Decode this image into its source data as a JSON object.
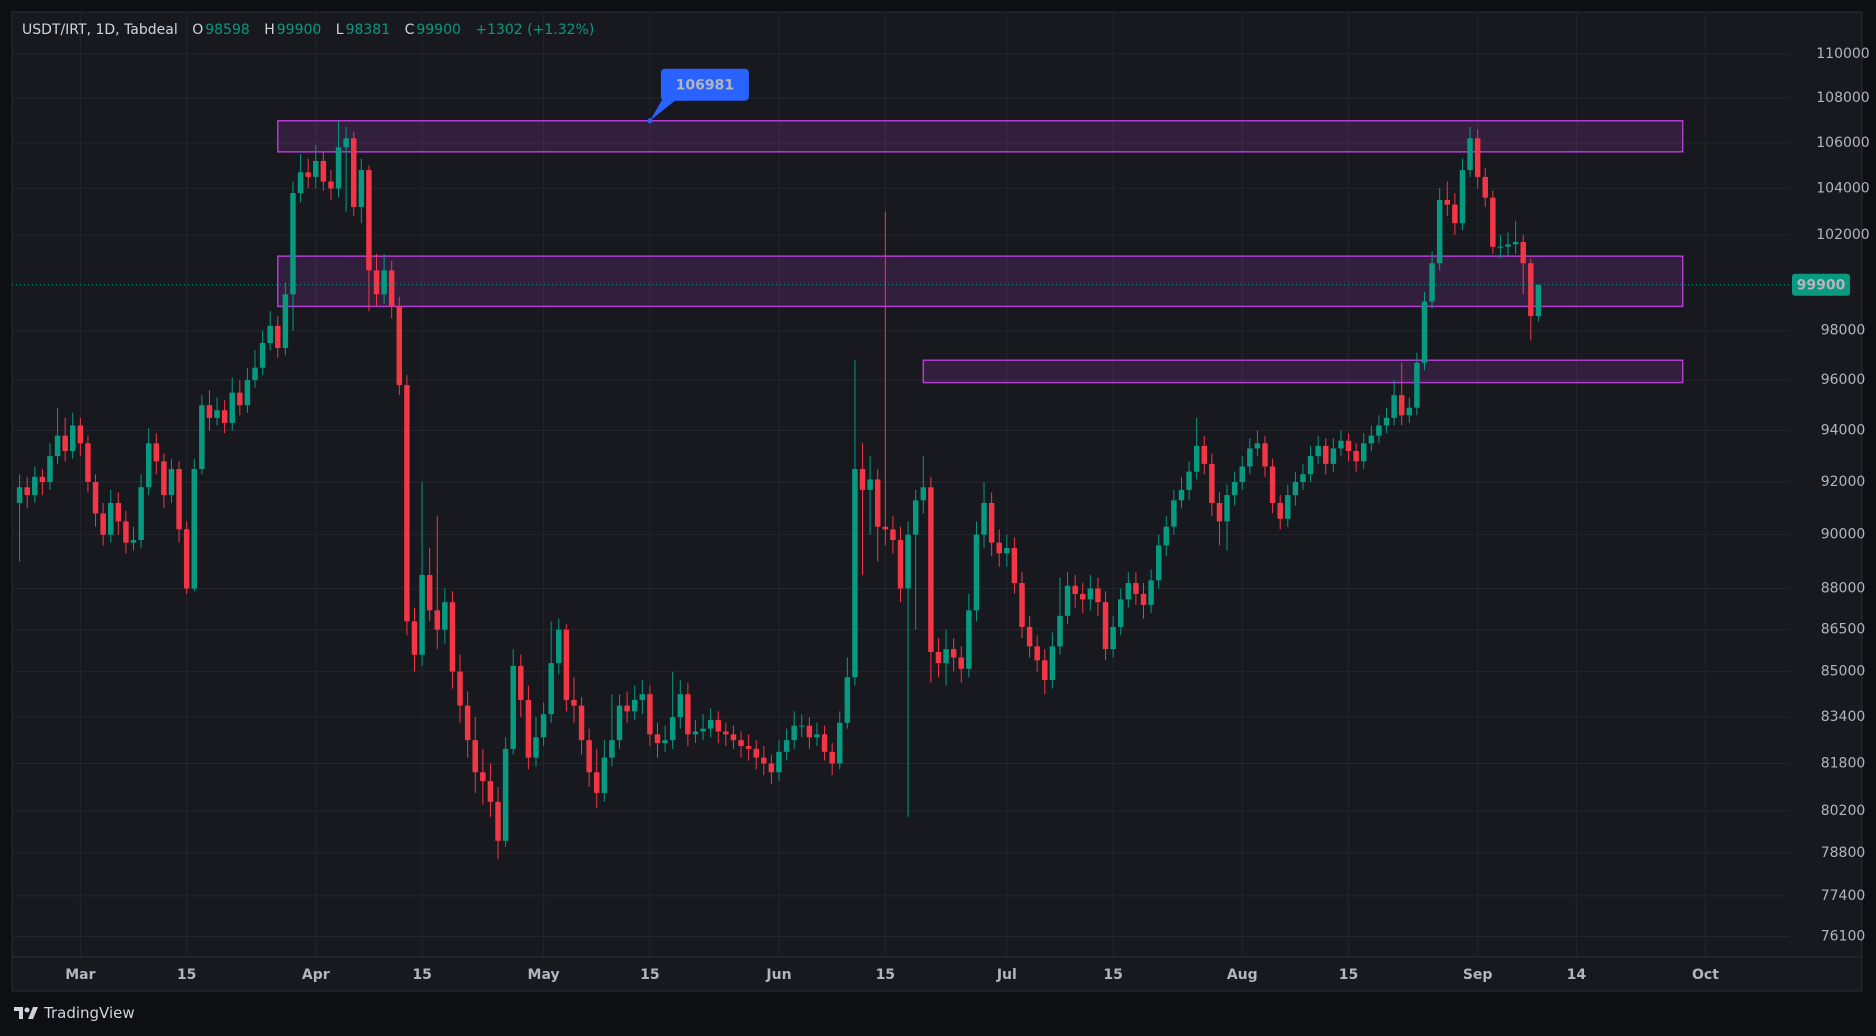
{
  "chart_data": {
    "type": "candlestick",
    "title": "USDT/IRT, 1D, Tabdeal",
    "ohlc_labels": [
      "O",
      "H",
      "L",
      "C"
    ],
    "change": "+1302 (+1.32%)",
    "watermark": "TradingView",
    "up_color": "#089981",
    "down_color": "#f23645",
    "zone_color": "#b33bd1",
    "callout_color": "#2962ff",
    "log_scale": true,
    "grid": true,
    "xlim": [
      "02-21",
      "10-12"
    ],
    "ylim": [
      75450,
      111950
    ],
    "yticks": [
      110000,
      108000,
      106000,
      104000,
      102000,
      98000,
      96000,
      94000,
      92000,
      90000,
      88000,
      86500,
      85000,
      83400,
      81800,
      80200,
      78800,
      77400,
      76100
    ],
    "xticks": [
      {
        "value": "03-01",
        "label": "Mar"
      },
      {
        "value": "03-15",
        "label": "15"
      },
      {
        "value": "04-01",
        "label": "Apr"
      },
      {
        "value": "04-15",
        "label": "15"
      },
      {
        "value": "05-01",
        "label": "May"
      },
      {
        "value": "05-15",
        "label": "15"
      },
      {
        "value": "06-01",
        "label": "Jun"
      },
      {
        "value": "06-15",
        "label": "15"
      },
      {
        "value": "07-01",
        "label": "Jul"
      },
      {
        "value": "07-15",
        "label": "15"
      },
      {
        "value": "08-01",
        "label": "Aug"
      },
      {
        "value": "08-15",
        "label": "15"
      },
      {
        "value": "09-01",
        "label": "Sep"
      },
      {
        "value": "09-14",
        "label": "14"
      },
      {
        "value": "10-01",
        "label": "Oct"
      }
    ],
    "x": [
      "02-22",
      "02-23",
      "02-24",
      "02-25",
      "02-26",
      "02-27",
      "02-28",
      "02-29",
      "03-01",
      "03-02",
      "03-03",
      "03-04",
      "03-05",
      "03-06",
      "03-07",
      "03-08",
      "03-09",
      "03-10",
      "03-11",
      "03-12",
      "03-13",
      "03-14",
      "03-15",
      "03-16",
      "03-17",
      "03-18",
      "03-19",
      "03-20",
      "03-21",
      "03-22",
      "03-23",
      "03-24",
      "03-25",
      "03-26",
      "03-27",
      "03-28",
      "03-29",
      "03-30",
      "03-31",
      "04-01",
      "04-02",
      "04-03",
      "04-04",
      "04-05",
      "04-06",
      "04-07",
      "04-08",
      "04-09",
      "04-10",
      "04-11",
      "04-12",
      "04-13",
      "04-14",
      "04-15",
      "04-16",
      "04-17",
      "04-18",
      "04-19",
      "04-20",
      "04-21",
      "04-22",
      "04-23",
      "04-24",
      "04-25",
      "04-26",
      "04-27",
      "04-28",
      "04-29",
      "04-30",
      "05-01",
      "05-02",
      "05-03",
      "05-04",
      "05-05",
      "05-06",
      "05-07",
      "05-08",
      "05-09",
      "05-10",
      "05-11",
      "05-12",
      "05-13",
      "05-14",
      "05-15",
      "05-16",
      "05-17",
      "05-18",
      "05-19",
      "05-20",
      "05-21",
      "05-22",
      "05-23",
      "05-24",
      "05-25",
      "05-26",
      "05-27",
      "05-28",
      "05-29",
      "05-30",
      "05-31",
      "06-01",
      "06-02",
      "06-03",
      "06-04",
      "06-05",
      "06-06",
      "06-07",
      "06-08",
      "06-09",
      "06-10",
      "06-11",
      "06-12",
      "06-13",
      "06-14",
      "06-15",
      "06-16",
      "06-17",
      "06-18",
      "06-19",
      "06-20",
      "06-21",
      "06-22",
      "06-23",
      "06-24",
      "06-25",
      "06-26",
      "06-27",
      "06-28",
      "06-29",
      "06-30",
      "07-01",
      "07-02",
      "07-03",
      "07-04",
      "07-05",
      "07-06",
      "07-07",
      "07-08",
      "07-09",
      "07-10",
      "07-11",
      "07-12",
      "07-13",
      "07-14",
      "07-15",
      "07-16",
      "07-17",
      "07-18",
      "07-19",
      "07-20",
      "07-21",
      "07-22",
      "07-23",
      "07-24",
      "07-25",
      "07-26",
      "07-27",
      "07-28",
      "07-29",
      "07-30",
      "07-31",
      "08-01",
      "08-02",
      "08-03",
      "08-04",
      "08-05",
      "08-06",
      "08-07",
      "08-08",
      "08-09",
      "08-10",
      "08-11",
      "08-12",
      "08-13",
      "08-14",
      "08-15",
      "08-16",
      "08-17",
      "08-18",
      "08-19",
      "08-20",
      "08-21",
      "08-22",
      "08-23",
      "08-24",
      "08-25",
      "08-26",
      "08-27",
      "08-28",
      "08-29",
      "08-30",
      "08-31",
      "09-01",
      "09-02",
      "09-03",
      "09-04",
      "09-05",
      "09-06",
      "09-07",
      "09-08",
      "09-09"
    ],
    "open": [
      91200,
      91800,
      91500,
      92200,
      92000,
      93000,
      93800,
      93200,
      94200,
      93500,
      92000,
      90800,
      90000,
      91200,
      90500,
      89700,
      89800,
      91800,
      93500,
      92800,
      91500,
      92500,
      90200,
      88000,
      92500,
      95000,
      94500,
      94800,
      94300,
      95500,
      95000,
      96000,
      96500,
      97500,
      98200,
      97300,
      99500,
      103800,
      104700,
      104500,
      105200,
      104300,
      104000,
      105800,
      106200,
      103200,
      104800,
      100500,
      99500,
      100500,
      99000,
      95800,
      86800,
      85600,
      88500,
      87200,
      86500,
      87500,
      85000,
      83800,
      82600,
      81500,
      81200,
      80500,
      79200,
      82300,
      85200,
      84000,
      82000,
      82700,
      83500,
      85300,
      86500,
      84000,
      83800,
      82600,
      81500,
      80800,
      82000,
      82600,
      83800,
      83600,
      84000,
      84200,
      82800,
      82500,
      82600,
      83400,
      84200,
      82800,
      82900,
      83000,
      83300,
      82900,
      82800,
      82600,
      82400,
      82300,
      82000,
      81800,
      81500,
      82200,
      82600,
      83100,
      83100,
      82700,
      82800,
      82200,
      81800,
      83200,
      84800,
      92500,
      91700,
      92100,
      90300,
      90200,
      89800,
      88000,
      90000,
      91300,
      91800,
      85700,
      85300,
      85800,
      85500,
      85100,
      87200,
      90000,
      91200,
      89700,
      89300,
      89500,
      88200,
      86600,
      85900,
      85400,
      84700,
      85900,
      87000,
      88100,
      87800,
      87600,
      88000,
      87500,
      85800,
      86600,
      87600,
      88200,
      87800,
      87400,
      88300,
      89600,
      90300,
      91300,
      91700,
      92400,
      93400,
      92700,
      91200,
      90500,
      91500,
      92000,
      92600,
      93300,
      93500,
      92600,
      91200,
      90600,
      91500,
      92000,
      92300,
      93000,
      93400,
      92700,
      93300,
      93600,
      93200,
      92800,
      93500,
      93800,
      94200,
      94500,
      95400,
      94600,
      94900,
      96700,
      99200,
      100800,
      103500,
      103300,
      102500,
      104800,
      106200,
      104500,
      103600,
      101500,
      101500,
      101600,
      101700,
      100800,
      98598
    ],
    "high": [
      92300,
      92200,
      92600,
      92500,
      93500,
      94900,
      94500,
      94700,
      94500,
      93800,
      92300,
      91200,
      91700,
      91600,
      90900,
      90300,
      92300,
      94100,
      93900,
      93100,
      92900,
      92800,
      90500,
      92900,
      95400,
      95600,
      95300,
      95200,
      96100,
      96000,
      96500,
      97200,
      98000,
      98800,
      98600,
      100000,
      104300,
      105500,
      105300,
      105900,
      105600,
      104800,
      106981,
      106700,
      106500,
      105300,
      105000,
      101200,
      101200,
      100900,
      99400,
      96200,
      87300,
      92000,
      89500,
      90700,
      88000,
      87900,
      85600,
      84300,
      83400,
      82300,
      81800,
      81000,
      82700,
      85800,
      85600,
      84500,
      83400,
      83900,
      86800,
      86900,
      86700,
      84800,
      84100,
      83000,
      82300,
      82600,
      84200,
      84200,
      84300,
      84500,
      84700,
      84500,
      83200,
      83100,
      85000,
      84700,
      84600,
      83300,
      83500,
      83700,
      83600,
      83200,
      83100,
      82900,
      82800,
      82600,
      82400,
      82100,
      82600,
      83000,
      83600,
      83500,
      83400,
      83200,
      83100,
      82500,
      83600,
      85500,
      96800,
      93500,
      93000,
      92500,
      103000,
      90700,
      90300,
      90500,
      91700,
      93000,
      92200,
      86200,
      86500,
      86200,
      85900,
      87800,
      90500,
      92000,
      91600,
      90200,
      90000,
      89900,
      88600,
      87000,
      86300,
      85800,
      86400,
      88400,
      88600,
      88500,
      88200,
      88500,
      88400,
      87900,
      87000,
      88000,
      88600,
      88600,
      88200,
      88700,
      90000,
      90700,
      91700,
      92200,
      92800,
      94500,
      93800,
      93100,
      91600,
      91900,
      92400,
      93000,
      93700,
      94000,
      93800,
      92900,
      91500,
      91900,
      92400,
      92700,
      93400,
      93800,
      93700,
      93700,
      94000,
      93900,
      93500,
      93900,
      94200,
      94600,
      94900,
      96000,
      96700,
      95300,
      97100,
      99600,
      101300,
      104000,
      104300,
      103800,
      105300,
      106700,
      106600,
      104900,
      103900,
      102000,
      102100,
      102600,
      102000,
      101000,
      99900
    ],
    "low": [
      89000,
      91000,
      91200,
      91500,
      91700,
      92700,
      92800,
      92900,
      93000,
      91600,
      90300,
      89600,
      89700,
      90000,
      89300,
      89400,
      89500,
      91500,
      92300,
      91000,
      91200,
      89700,
      87800,
      87900,
      92300,
      94000,
      94200,
      93900,
      94000,
      94600,
      94700,
      95700,
      96200,
      97200,
      96900,
      97000,
      98000,
      103400,
      104000,
      104000,
      103900,
      103500,
      103600,
      103000,
      102800,
      102500,
      98800,
      99000,
      99100,
      98500,
      95400,
      86300,
      85000,
      85200,
      86800,
      85800,
      86000,
      84400,
      83200,
      82000,
      80800,
      80400,
      80000,
      78600,
      79000,
      82100,
      83400,
      81600,
      81700,
      82400,
      83200,
      84900,
      83600,
      83200,
      82100,
      81000,
      80300,
      80500,
      81700,
      82300,
      83200,
      83300,
      83500,
      82400,
      82000,
      82200,
      82300,
      83000,
      82400,
      82500,
      82600,
      82700,
      82500,
      82400,
      82300,
      82000,
      81900,
      81600,
      81400,
      81100,
      81200,
      81900,
      82300,
      82700,
      82300,
      82400,
      81900,
      81400,
      81600,
      83000,
      84500,
      88500,
      90000,
      89000,
      89600,
      89300,
      87500,
      80000,
      86500,
      90800,
      84600,
      84800,
      84500,
      85000,
      84600,
      84800,
      86800,
      89500,
      89200,
      88800,
      88800,
      87800,
      86200,
      85500,
      85000,
      84200,
      84400,
      85600,
      86700,
      87300,
      87100,
      87200,
      87000,
      85400,
      85500,
      86300,
      87300,
      87400,
      86900,
      87100,
      88000,
      89200,
      90000,
      91000,
      91300,
      92100,
      92300,
      90700,
      89600,
      89400,
      91100,
      91700,
      92300,
      93000,
      92200,
      90800,
      90200,
      90300,
      91100,
      91700,
      92000,
      92700,
      92300,
      92400,
      93000,
      92800,
      92400,
      92500,
      93200,
      93500,
      93900,
      94200,
      94200,
      94300,
      94600,
      96400,
      98900,
      100500,
      102800,
      102000,
      102200,
      104500,
      104000,
      103200,
      101200,
      101000,
      101100,
      101200,
      99500,
      97600,
      98381
    ],
    "close": [
      91800,
      91500,
      92200,
      92000,
      93000,
      93800,
      93200,
      94200,
      93500,
      92000,
      90800,
      90000,
      91200,
      90500,
      89700,
      89800,
      91800,
      93500,
      92800,
      91500,
      92500,
      90200,
      88000,
      92500,
      95000,
      94500,
      94800,
      94300,
      95500,
      95000,
      96000,
      96500,
      97500,
      98200,
      97300,
      99500,
      103800,
      104700,
      104500,
      105200,
      104300,
      104000,
      105800,
      106200,
      103200,
      104800,
      100500,
      99500,
      100500,
      99000,
      95800,
      86800,
      85600,
      88500,
      87200,
      86500,
      87500,
      85000,
      83800,
      82600,
      81500,
      81200,
      80500,
      79200,
      82300,
      85200,
      84000,
      82000,
      82700,
      83500,
      85300,
      86500,
      84000,
      83800,
      82600,
      81500,
      80800,
      82000,
      82600,
      83800,
      83600,
      84000,
      84200,
      82800,
      82500,
      82600,
      83400,
      84200,
      82800,
      82900,
      83000,
      83300,
      82900,
      82800,
      82600,
      82400,
      82300,
      82000,
      81800,
      81500,
      82200,
      82600,
      83100,
      83100,
      82700,
      82800,
      82200,
      81800,
      83200,
      84800,
      92500,
      91700,
      92100,
      90300,
      90200,
      89800,
      88000,
      90000,
      91300,
      91800,
      85700,
      85300,
      85800,
      85500,
      85100,
      87200,
      90000,
      91200,
      89700,
      89300,
      89500,
      88200,
      86600,
      85900,
      85400,
      84700,
      85900,
      87000,
      88100,
      87800,
      87600,
      88000,
      87500,
      85800,
      86600,
      87600,
      88200,
      87800,
      87400,
      88300,
      89600,
      90300,
      91300,
      91700,
      92400,
      93400,
      92700,
      91200,
      90500,
      91500,
      92000,
      92600,
      93300,
      93500,
      92600,
      91200,
      90600,
      91500,
      92000,
      92300,
      93000,
      93400,
      92700,
      93300,
      93600,
      93200,
      92800,
      93500,
      93800,
      94200,
      94500,
      95400,
      94600,
      94900,
      96700,
      99200,
      100800,
      103500,
      103300,
      102500,
      104800,
      106200,
      104500,
      103600,
      101500,
      101500,
      101600,
      101700,
      100800,
      98600,
      99900
    ],
    "zones": [
      {
        "top": 106981,
        "bottom": 105600,
        "from": "03-27",
        "to": "09-28"
      },
      {
        "top": 101100,
        "bottom": 99000,
        "from": "03-27",
        "to": "09-28"
      },
      {
        "top": 96800,
        "bottom": 95900,
        "from": "06-20",
        "to": "09-28"
      }
    ],
    "annotation": {
      "x": "05-15",
      "value": 106981
    }
  }
}
